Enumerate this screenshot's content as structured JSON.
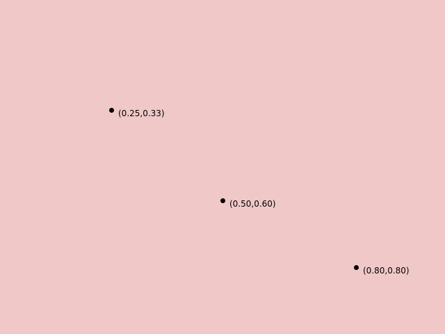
{
  "background_color": "#f0c8c8",
  "marker_color": "#000000",
  "points": [
    {
      "x": 0.25,
      "y": 0.33,
      "label": "(0.25,0.33)"
    },
    {
      "x": 0.5,
      "y": 0.6,
      "label": "(0.50,0.60)"
    },
    {
      "x": 0.8,
      "y": 0.8,
      "label": "(0.80,0.80)"
    }
  ]
}
